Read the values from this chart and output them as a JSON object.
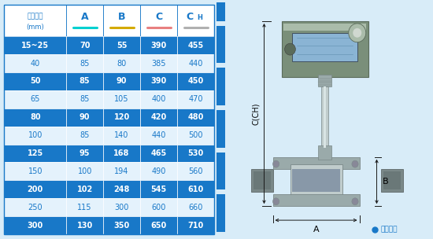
{
  "headers_line1": [
    "仪表口径",
    "A",
    "B",
    "C",
    "CH"
  ],
  "headers_line2": [
    "(mm)",
    "",
    "",
    "",
    ""
  ],
  "col_underline_colors": [
    "none",
    "#00d0d0",
    "#d4aa00",
    "#e88080",
    "#b0b0b0"
  ],
  "rows": [
    [
      "15~25",
      "70",
      "55",
      "390",
      "455"
    ],
    [
      "40",
      "85",
      "80",
      "385",
      "440"
    ],
    [
      "50",
      "85",
      "90",
      "390",
      "450"
    ],
    [
      "65",
      "85",
      "105",
      "400",
      "470"
    ],
    [
      "80",
      "90",
      "120",
      "420",
      "480"
    ],
    [
      "100",
      "85",
      "140",
      "440",
      "500"
    ],
    [
      "125",
      "95",
      "168",
      "465",
      "530"
    ],
    [
      "150",
      "100",
      "194",
      "490",
      "560"
    ],
    [
      "200",
      "102",
      "248",
      "545",
      "610"
    ],
    [
      "250",
      "115",
      "300",
      "600",
      "660"
    ],
    [
      "300",
      "130",
      "350",
      "650",
      "710"
    ]
  ],
  "dark_row_indices": [
    0,
    2,
    4,
    6,
    8,
    10
  ],
  "dark_bg": "#1878c8",
  "light_bg": "#e4f2fc",
  "text_color_dark": "#ffffff",
  "text_color_light": "#1878c8",
  "header_bg": "#ffffff",
  "header_text_color": "#1878c8",
  "border_color": "#1878c8",
  "fig_bg": "#d8ecf8",
  "table_border": "#1878c8",
  "ch_subscript": "H",
  "label_dim_color": "#1a1a1a",
  "arrow_color": "#1a1a1a",
  "bullet_color": "#1878c8",
  "footnote_text": "常规仪表"
}
